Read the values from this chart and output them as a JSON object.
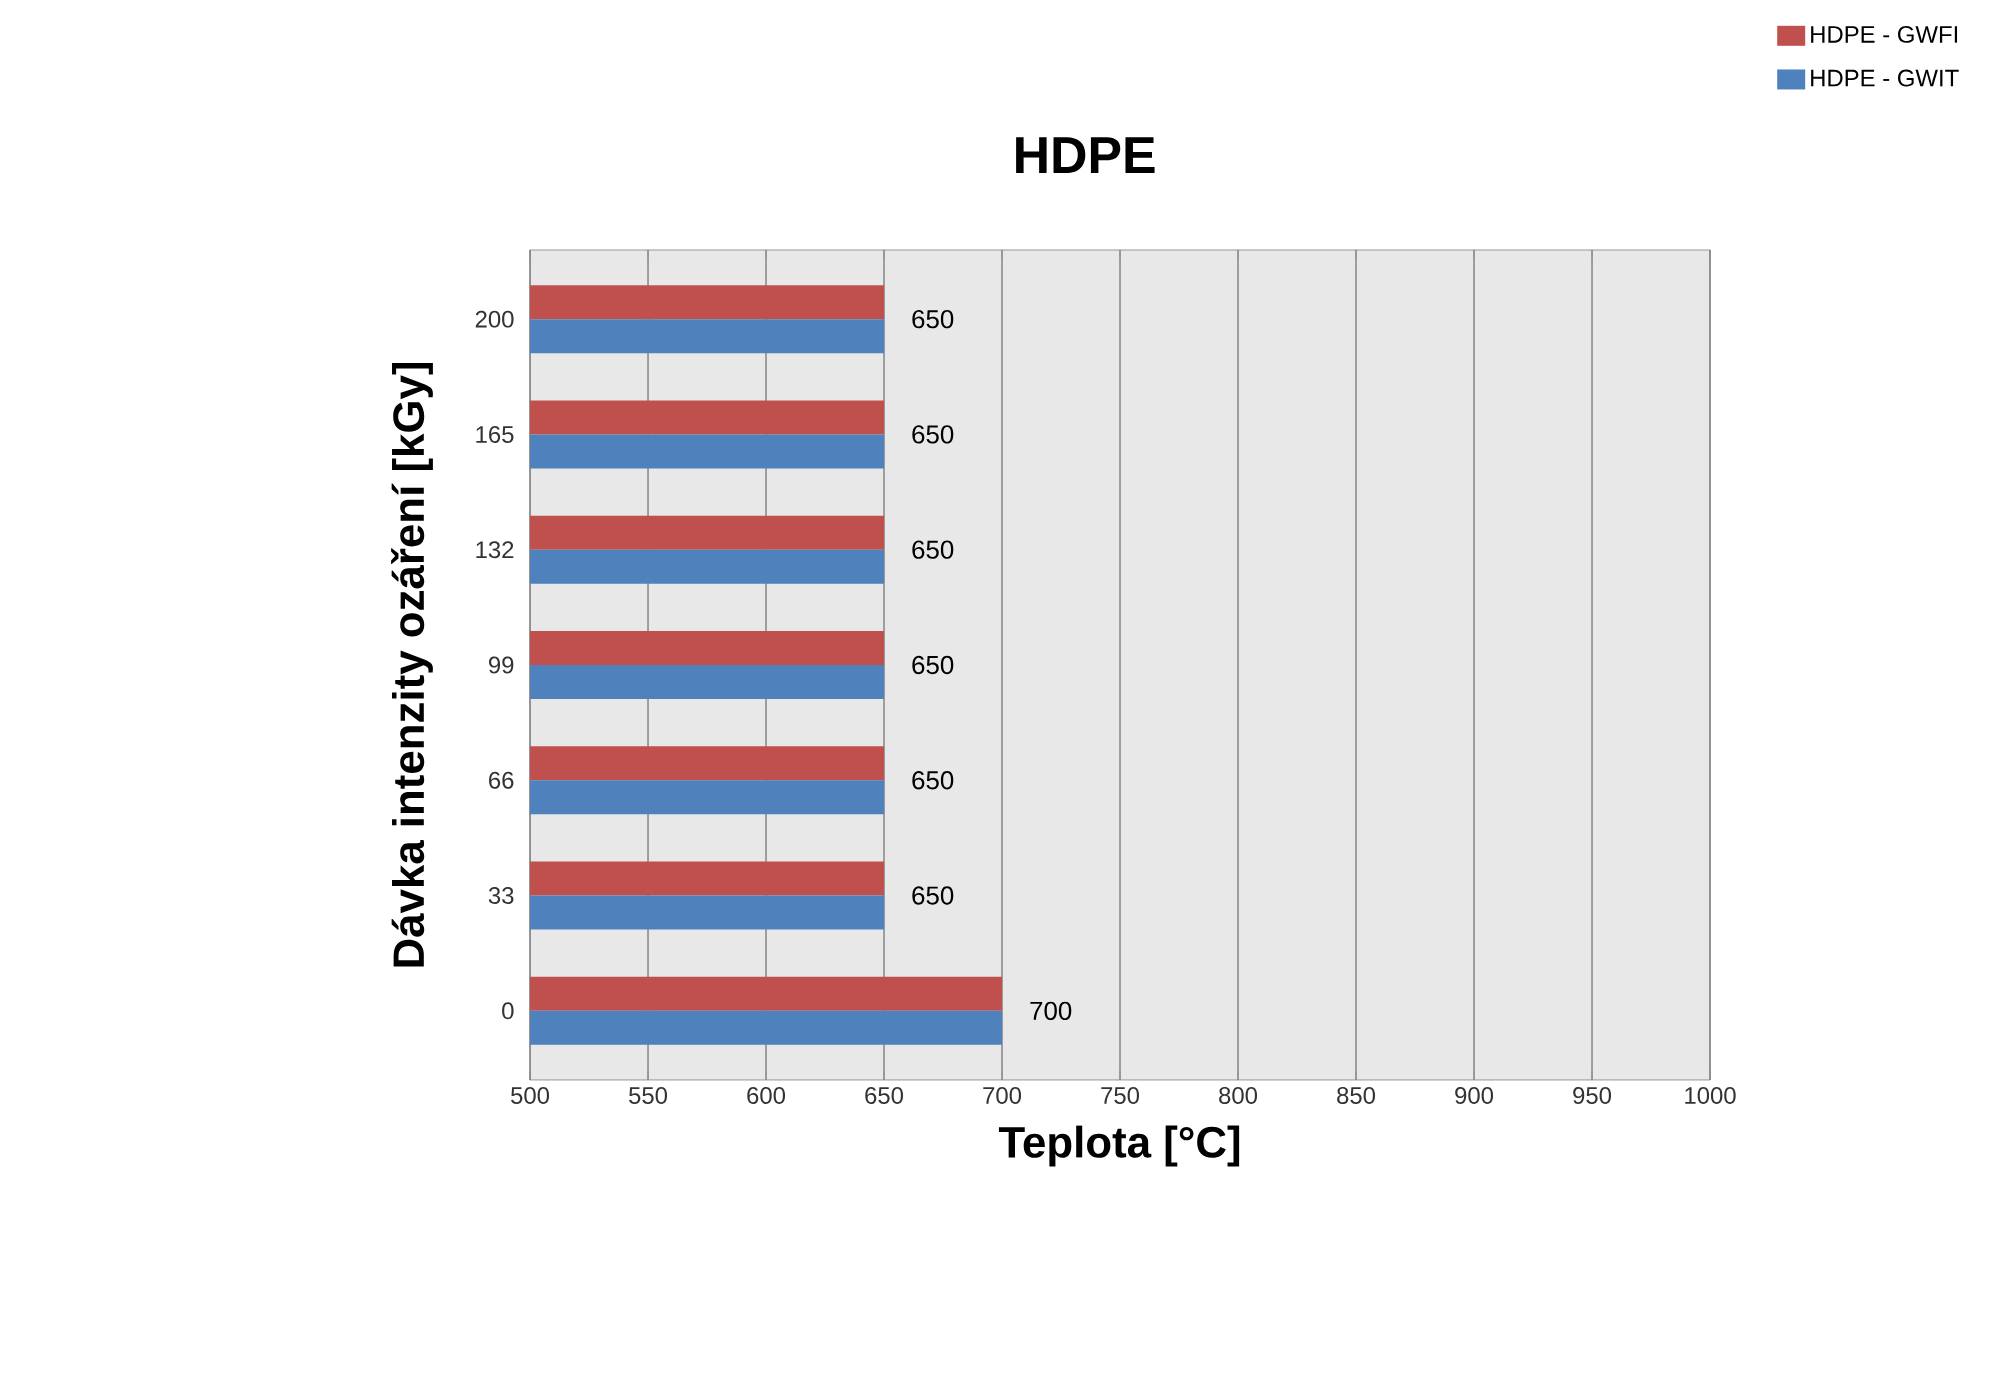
{
  "chart_data": {
    "type": "bar",
    "orientation": "horizontal",
    "title": "HDPE",
    "xlabel": "Teplota [°C]",
    "ylabel": "Dávka intenzity ozáření [kGy]",
    "categories": [
      "200",
      "165",
      "132",
      "99",
      "66",
      "33",
      "0"
    ],
    "series": [
      {
        "name": "HDPE - GWFI",
        "color": "#c0504d",
        "values": [
          650,
          650,
          650,
          650,
          650,
          650,
          700
        ],
        "value_labels": [
          "650",
          "650",
          "650",
          "650",
          "650",
          "650",
          "700"
        ]
      },
      {
        "name": "HDPE - GWIT",
        "color": "#4f81bd",
        "values": [
          650,
          650,
          650,
          650,
          650,
          650,
          700
        ]
      }
    ],
    "xlim": [
      500,
      1000
    ],
    "xticks": [
      500,
      550,
      600,
      650,
      700,
      750,
      800,
      850,
      900,
      950,
      1000
    ],
    "grid": "x",
    "legend": "top right"
  }
}
